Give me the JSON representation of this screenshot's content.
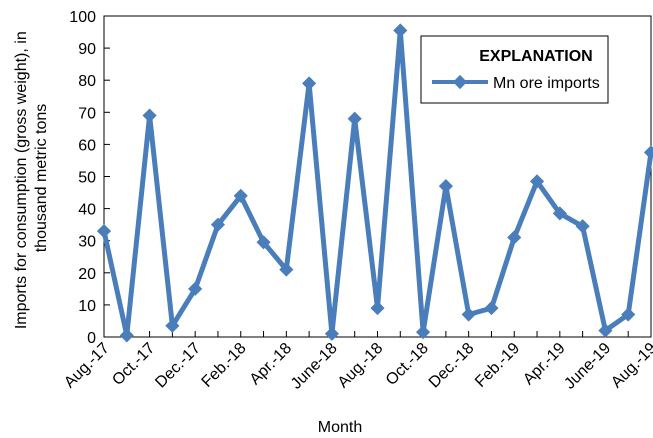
{
  "chart_data": {
    "type": "line",
    "title": "",
    "xlabel": "Month",
    "ylabel": "Imports for consumption (gross weight), in thousand metric tons",
    "ylabel_lines": [
      "Imports for consumption (gross weight), in",
      "thousand metric tons"
    ],
    "ylim": [
      0,
      100
    ],
    "yticks": [
      0,
      10,
      20,
      30,
      40,
      50,
      60,
      70,
      80,
      90,
      100
    ],
    "grid": false,
    "legend": {
      "title": "EXPLANATION",
      "placement": "top-right"
    },
    "x": [
      "Aug.-17",
      "Sept.-17",
      "Oct.-17",
      "Nov.-17",
      "Dec.-17",
      "Jan.-18",
      "Feb.-18",
      "Mar.-18",
      "Apr.-18",
      "May-18",
      "June-18",
      "July-18",
      "Aug.-18",
      "Sept.-18",
      "Oct.-18",
      "Nov.-18",
      "Dec.-18",
      "Jan.-19",
      "Feb.-19",
      "Mar.-19",
      "Apr.-19",
      "May-19",
      "June-19",
      "July-19",
      "Aug.-19"
    ],
    "xtick_labels": [
      "Aug.-17",
      "Oct.-17",
      "Dec.-17",
      "Feb.-18",
      "Apr.-18",
      "June-18",
      "Aug.-18",
      "Oct.-18",
      "Dec.-18",
      "Feb.-19",
      "Apr.-19",
      "June-19",
      "Aug.-19"
    ],
    "series": [
      {
        "name": "Mn ore imports",
        "color": "#4a7ebb",
        "marker": "diamond",
        "values": [
          33,
          0.5,
          69,
          3.5,
          15,
          35,
          44,
          29.5,
          21,
          79,
          1,
          68,
          9,
          95.5,
          1.5,
          47,
          7,
          9,
          31,
          48.5,
          38.5,
          34.5,
          2,
          7,
          57.5
        ]
      }
    ]
  }
}
